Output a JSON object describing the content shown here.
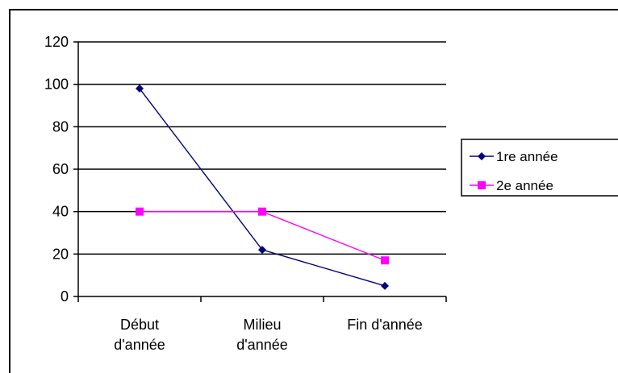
{
  "chart_data": {
    "type": "line",
    "categories": [
      [
        "Début",
        "d'année"
      ],
      [
        "Milieu",
        "d'année"
      ],
      [
        "Fin d'année"
      ]
    ],
    "series": [
      {
        "name": "1re année",
        "values": [
          98,
          22,
          5
        ],
        "color": "#000080",
        "marker": "diamond"
      },
      {
        "name": "2e année",
        "values": [
          40,
          40,
          17
        ],
        "color": "#ff00ff",
        "marker": "square"
      }
    ],
    "ylim": [
      0,
      120
    ],
    "yticks": [
      "0",
      "20",
      "40",
      "60",
      "80",
      "100",
      "120"
    ],
    "grid": true,
    "legend": "right"
  }
}
